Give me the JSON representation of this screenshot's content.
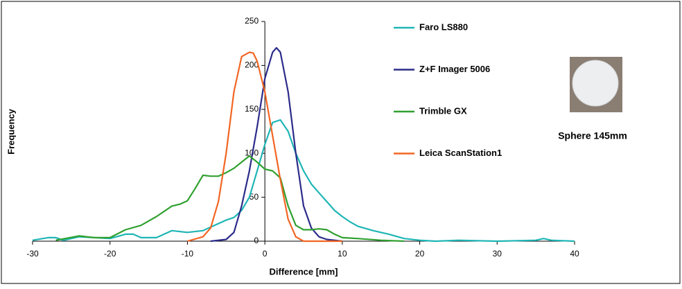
{
  "chart_data": {
    "type": "line",
    "xlabel": "Difference [mm]",
    "ylabel": "Frequency",
    "annotation": "Sphere 145mm",
    "xlim": [
      -30,
      40
    ],
    "xticks": [
      -30,
      -20,
      -10,
      0,
      10,
      20,
      30,
      40
    ],
    "ylim": [
      0,
      250
    ],
    "yticks": [
      0,
      50,
      100,
      150,
      200,
      250
    ],
    "grid": false,
    "legend": "right",
    "series": [
      {
        "name": "Faro LS880",
        "color": "#1fb5b5",
        "x": [
          -30,
          -28,
          -27,
          -26,
          -24,
          -22,
          -20,
          -18,
          -17,
          -16,
          -14,
          -12,
          -10,
          -8,
          -6,
          -5,
          -4,
          -3,
          -2,
          -1,
          0,
          1,
          2,
          3,
          4,
          5,
          6,
          7,
          8,
          9,
          10,
          11,
          12,
          14,
          16,
          18,
          20,
          22,
          25,
          30,
          35,
          36,
          37,
          40
        ],
        "values": [
          1,
          4,
          4,
          1,
          5,
          4,
          3,
          8,
          8,
          4,
          4,
          12,
          10,
          12,
          20,
          24,
          27,
          35,
          50,
          80,
          110,
          135,
          138,
          125,
          100,
          80,
          65,
          55,
          45,
          35,
          28,
          22,
          17,
          12,
          8,
          3,
          1,
          0,
          1,
          0,
          1,
          3,
          1,
          0
        ]
      },
      {
        "name": "Z+F Imager 5006",
        "color": "#2b2b8a",
        "x": [
          -7,
          -5,
          -4,
          -3,
          -2,
          -1,
          0,
          1,
          1.5,
          2,
          3,
          4,
          5,
          6,
          7,
          8,
          10
        ],
        "values": [
          0,
          2,
          10,
          40,
          80,
          130,
          185,
          215,
          220,
          215,
          170,
          100,
          40,
          15,
          5,
          2,
          0
        ]
      },
      {
        "name": "Trimble GX",
        "color": "#30a030",
        "x": [
          -27,
          -24,
          -22,
          -20,
          -18,
          -16,
          -14,
          -12,
          -11,
          -10,
          -9,
          -8,
          -7,
          -6,
          -5,
          -4,
          -3,
          -2,
          -1,
          0,
          1,
          2,
          3,
          4,
          5,
          6,
          7,
          8,
          9,
          10,
          12,
          15,
          18
        ],
        "values": [
          1,
          6,
          4,
          4,
          13,
          18,
          28,
          40,
          42,
          46,
          60,
          75,
          74,
          74,
          78,
          83,
          90,
          97,
          90,
          82,
          80,
          72,
          40,
          18,
          13,
          13,
          14,
          13,
          8,
          4,
          3,
          1,
          0
        ]
      },
      {
        "name": "Leica ScanStation1",
        "color": "#f26522",
        "x": [
          -10,
          -8,
          -7,
          -6,
          -5,
          -4,
          -3,
          -2,
          -1.5,
          -1,
          0,
          1,
          2,
          3,
          4,
          5,
          10
        ],
        "values": [
          0,
          5,
          15,
          45,
          100,
          170,
          210,
          215,
          214,
          205,
          170,
          120,
          70,
          25,
          5,
          0,
          0
        ]
      }
    ]
  }
}
